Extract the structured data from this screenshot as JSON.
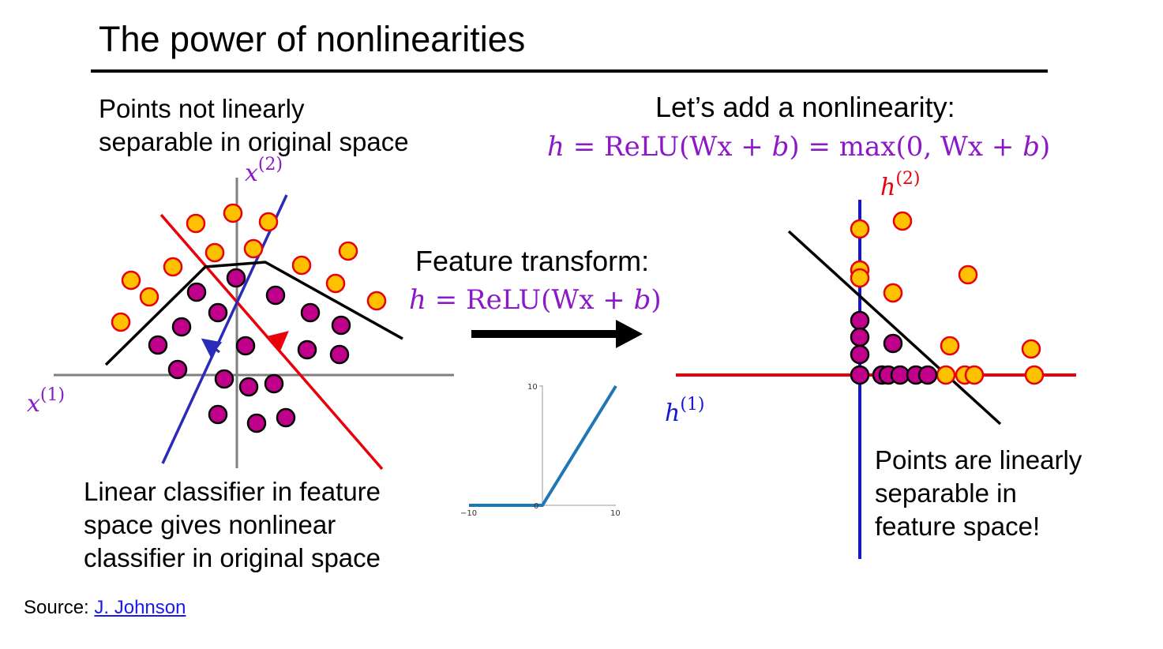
{
  "slide": {
    "title": "The power of nonlinearities",
    "left_caption_lines": [
      "Points not linearly",
      "separable in original space"
    ],
    "bottom_caption_lines": [
      "Linear classifier in feature",
      "space gives nonlinear",
      "classifier in original space"
    ],
    "right_heading": "Let’s add a nonlinearity:",
    "right_formula": "h = ReLU(Wx + b) = max(0, Wx + b)",
    "middle_heading": "Feature transform:",
    "middle_formula": "h = ReLU(Wx + b)",
    "right_caption_lines": [
      "Points are linearly",
      "separable in",
      "feature space!"
    ],
    "source_label": "Source:",
    "source_link": "J. Johnson"
  },
  "axes": {
    "left_x": "x(1)",
    "left_y": "x(2)",
    "right_x": "h(1)",
    "right_y": "h(2)"
  },
  "relu_plot": {
    "x_ticks": [
      "−10",
      "0",
      "10"
    ],
    "y_ticks": [
      "10"
    ]
  },
  "chart_data": {
    "type": "line",
    "title": "",
    "x": [
      -10,
      0,
      10
    ],
    "series": [
      {
        "values": [
          0,
          0,
          10
        ]
      }
    ],
    "xlim": [
      -10,
      10
    ],
    "ylim": [
      0,
      10
    ],
    "xticks": [
      -10,
      10
    ],
    "yticks": [
      10
    ]
  },
  "colors": {
    "orange_point": "#ffc000",
    "orange_outline": "#e8000b",
    "magenta_point": "#c0008a",
    "red_line": "#e8000b",
    "blue_line": "#2b2bb8",
    "purple_text": "#8b19c8",
    "relu_line": "#1f77b4"
  }
}
